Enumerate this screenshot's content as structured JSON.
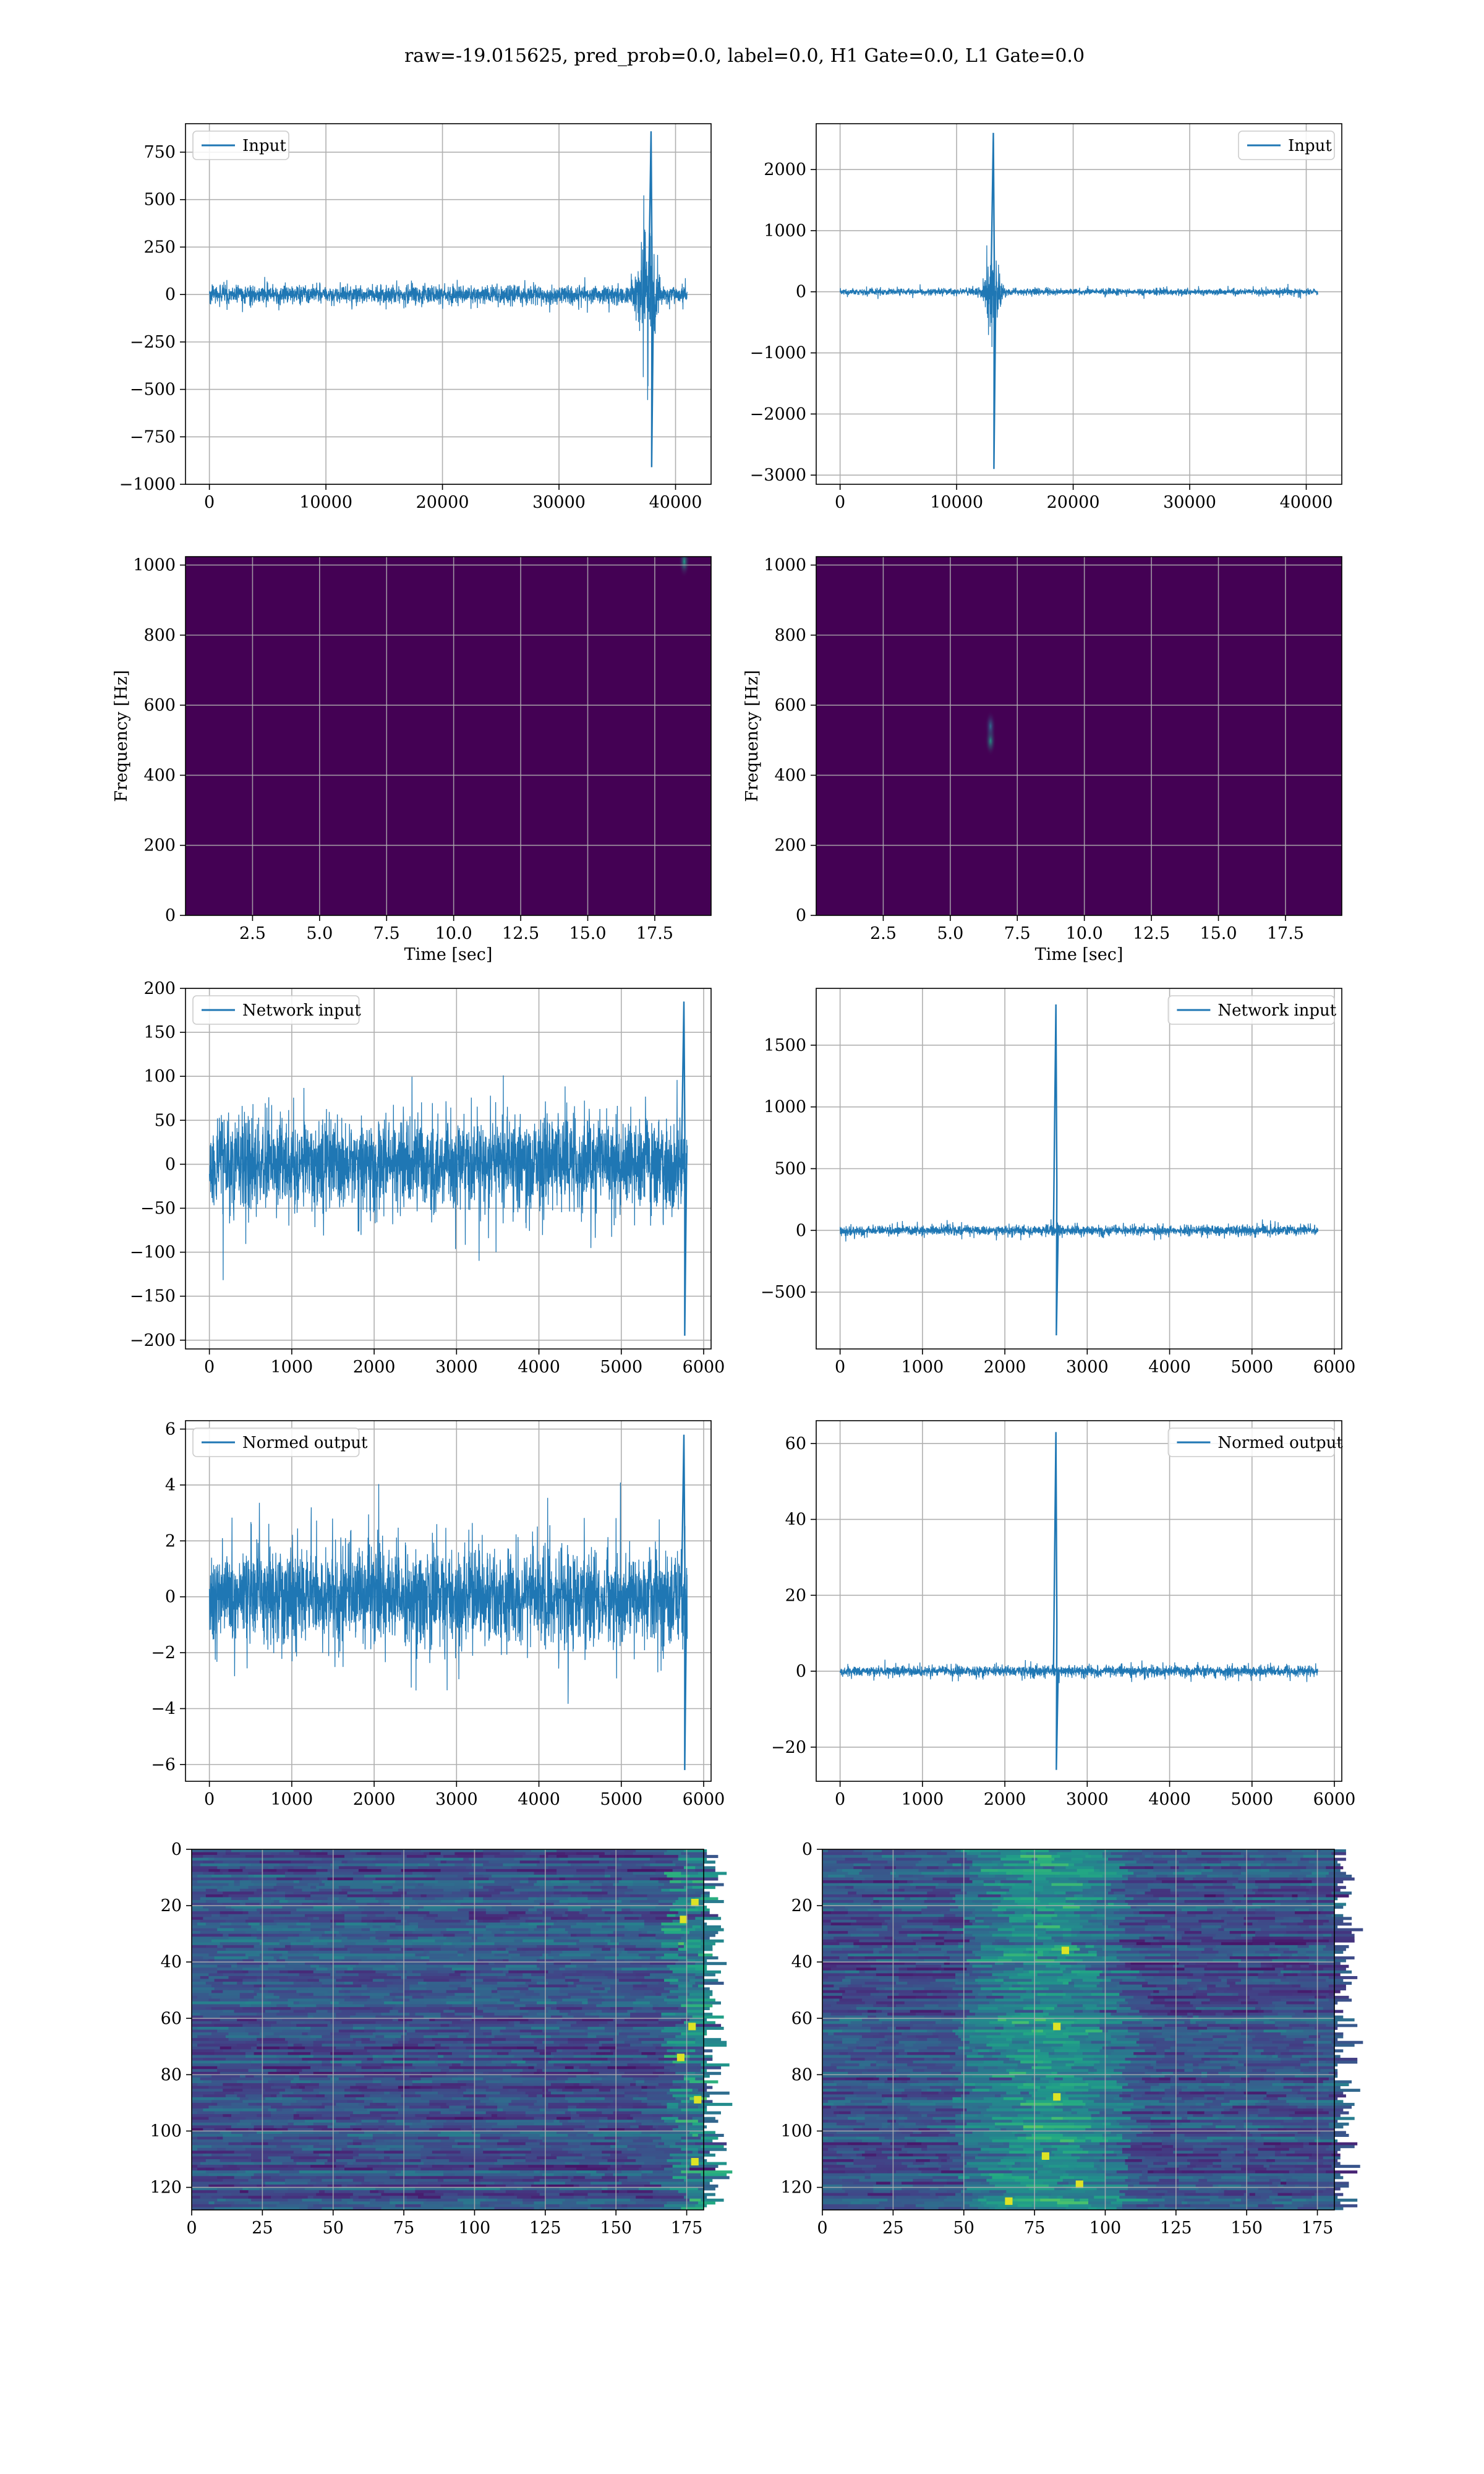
{
  "figure": {
    "title": "raw=-19.015625, pred_prob=0.0, label=0.0, H1 Gate=0.0, L1 Gate=0.0"
  },
  "colors": {
    "line": "#1f77b4",
    "grid": "#b0b0b0",
    "viridis_dark": "#440154",
    "viridis_mid": "#3b528b",
    "viridis_teal": "#21918c",
    "viridis_green": "#5ec962",
    "viridis_yellow": "#fde725"
  },
  "chart_data": [
    {
      "id": "input-h1",
      "type": "line",
      "legend": "Input",
      "legend_loc": "top-left",
      "grid": true,
      "xlim": [
        -2050,
        43050
      ],
      "ylim": [
        -1000,
        900
      ],
      "xticks": [
        0,
        10000,
        20000,
        30000,
        40000
      ],
      "yticks": [
        -1000,
        -750,
        -500,
        -250,
        0,
        250,
        500,
        750
      ],
      "x_range": [
        0,
        41000
      ],
      "noise_amplitude": 55,
      "events": [
        {
          "x": 37600,
          "y": 320,
          "label": "packet"
        },
        {
          "x": 37900,
          "y": 860,
          "label": "peak max"
        },
        {
          "x": 37950,
          "y": -910,
          "label": "peak min"
        }
      ]
    },
    {
      "id": "input-l1",
      "type": "line",
      "legend": "Input",
      "legend_loc": "top-right",
      "grid": true,
      "xlim": [
        -2050,
        43050
      ],
      "ylim": [
        -3150,
        2750
      ],
      "xticks": [
        0,
        10000,
        20000,
        30000,
        40000
      ],
      "yticks": [
        -3000,
        -2000,
        -1000,
        0,
        1000,
        2000
      ],
      "x_range": [
        0,
        41000
      ],
      "noise_amplitude": 60,
      "events": [
        {
          "x": 13000,
          "y": 550,
          "label": "packet"
        },
        {
          "x": 13150,
          "y": 2600,
          "label": "peak max"
        },
        {
          "x": 13200,
          "y": -2900,
          "label": "peak min"
        }
      ]
    },
    {
      "id": "spectrogram-h1",
      "type": "heatmap",
      "xlabel": "Time [sec]",
      "ylabel": "Frequency [Hz]",
      "grid": true,
      "xlim": [
        0,
        19.6
      ],
      "ylim": [
        0,
        1024
      ],
      "xticks": [
        2.5,
        5.0,
        7.5,
        10.0,
        12.5,
        15.0,
        17.5
      ],
      "xtick_labels": [
        "2.5",
        "5.0",
        "7.5",
        "10.0",
        "12.5",
        "15.0",
        "17.5"
      ],
      "yticks": [
        0,
        200,
        400,
        600,
        800,
        1000
      ],
      "hotspots": [
        {
          "t": 18.6,
          "f": 1010,
          "strength": 0.55
        }
      ]
    },
    {
      "id": "spectrogram-l1",
      "type": "heatmap",
      "xlabel": "Time [sec]",
      "ylabel": "Frequency [Hz]",
      "grid": true,
      "xlim": [
        0,
        19.6
      ],
      "ylim": [
        0,
        1024
      ],
      "xticks": [
        2.5,
        5.0,
        7.5,
        10.0,
        12.5,
        15.0,
        17.5
      ],
      "xtick_labels": [
        "2.5",
        "5.0",
        "7.5",
        "10.0",
        "12.5",
        "15.0",
        "17.5"
      ],
      "yticks": [
        0,
        200,
        400,
        600,
        800,
        1000
      ],
      "hotspots": [
        {
          "t": 6.5,
          "f": 500,
          "strength": 0.55
        },
        {
          "t": 6.5,
          "f": 540,
          "strength": 0.35
        }
      ]
    },
    {
      "id": "network-input-h1",
      "type": "line",
      "legend": "Network input",
      "legend_loc": "top-left",
      "grid": true,
      "xlim": [
        -290,
        6090
      ],
      "ylim": [
        -210,
        200
      ],
      "xticks": [
        0,
        1000,
        2000,
        3000,
        4000,
        5000,
        6000
      ],
      "yticks": [
        -200,
        -150,
        -100,
        -50,
        0,
        50,
        100,
        150,
        200
      ],
      "x_range": [
        0,
        5800
      ],
      "noise_amplitude": 60,
      "events": [
        {
          "x": 5760,
          "y": 185,
          "label": "peak max"
        },
        {
          "x": 5770,
          "y": -195,
          "label": "peak min"
        }
      ]
    },
    {
      "id": "network-input-l1",
      "type": "line",
      "legend": "Network input",
      "legend_loc": "top-right",
      "grid": true,
      "xlim": [
        -290,
        6090
      ],
      "ylim": [
        -960,
        1960
      ],
      "xticks": [
        0,
        1000,
        2000,
        3000,
        4000,
        5000,
        6000
      ],
      "yticks": [
        -500,
        0,
        500,
        1000,
        1500
      ],
      "x_range": [
        0,
        5800
      ],
      "noise_amplitude": 45,
      "events": [
        {
          "x": 2620,
          "y": 1830,
          "label": "peak max"
        },
        {
          "x": 2625,
          "y": -850,
          "label": "peak min"
        }
      ]
    },
    {
      "id": "normed-output-h1",
      "type": "line",
      "legend": "Normed output",
      "legend_loc": "top-left",
      "grid": true,
      "xlim": [
        -290,
        6090
      ],
      "ylim": [
        -6.6,
        6.3
      ],
      "xticks": [
        0,
        1000,
        2000,
        3000,
        4000,
        5000,
        6000
      ],
      "yticks": [
        -6,
        -4,
        -2,
        0,
        2,
        4,
        6
      ],
      "x_range": [
        0,
        5800
      ],
      "noise_amplitude": 1.9,
      "events": [
        {
          "x": 5760,
          "y": 5.8,
          "label": "peak max"
        },
        {
          "x": 5770,
          "y": -6.2,
          "label": "peak min"
        }
      ]
    },
    {
      "id": "normed-output-l1",
      "type": "line",
      "legend": "Normed output",
      "legend_loc": "top-right",
      "grid": true,
      "xlim": [
        -290,
        6090
      ],
      "ylim": [
        -29,
        66
      ],
      "xticks": [
        0,
        1000,
        2000,
        3000,
        4000,
        5000,
        6000
      ],
      "yticks": [
        -20,
        0,
        20,
        40,
        60
      ],
      "x_range": [
        0,
        5800
      ],
      "noise_amplitude": 1.6,
      "events": [
        {
          "x": 2620,
          "y": 63,
          "label": "peak max"
        },
        {
          "x": 2625,
          "y": -26,
          "label": "peak min"
        }
      ]
    },
    {
      "id": "features-h1",
      "type": "heatmap",
      "grid": true,
      "xlim": [
        0,
        181
      ],
      "ylim": [
        128,
        0
      ],
      "xticks": [
        0,
        25,
        50,
        75,
        100,
        125,
        150,
        175
      ],
      "yticks": [
        0,
        20,
        40,
        60,
        80,
        100,
        120
      ],
      "columns": 181,
      "rows": 128,
      "activity": "uniform with bright columns near 175-181",
      "hot_cells": [
        {
          "x": 177,
          "y": 18
        },
        {
          "x": 176,
          "y": 62
        },
        {
          "x": 172,
          "y": 73
        },
        {
          "x": 177,
          "y": 110
        },
        {
          "x": 173,
          "y": 24
        },
        {
          "x": 178,
          "y": 88
        }
      ]
    },
    {
      "id": "features-l1",
      "type": "heatmap",
      "grid": true,
      "xlim": [
        0,
        181
      ],
      "ylim": [
        128,
        0
      ],
      "xticks": [
        0,
        25,
        50,
        75,
        100,
        125,
        150,
        175
      ],
      "yticks": [
        0,
        20,
        40,
        60,
        80,
        100,
        120
      ],
      "columns": 181,
      "rows": 128,
      "activity": "band of higher activity around columns 50-100",
      "hot_cells": [
        {
          "x": 82,
          "y": 62
        },
        {
          "x": 82,
          "y": 87
        },
        {
          "x": 78,
          "y": 108
        },
        {
          "x": 65,
          "y": 124
        },
        {
          "x": 90,
          "y": 118
        },
        {
          "x": 85,
          "y": 35
        }
      ]
    }
  ]
}
